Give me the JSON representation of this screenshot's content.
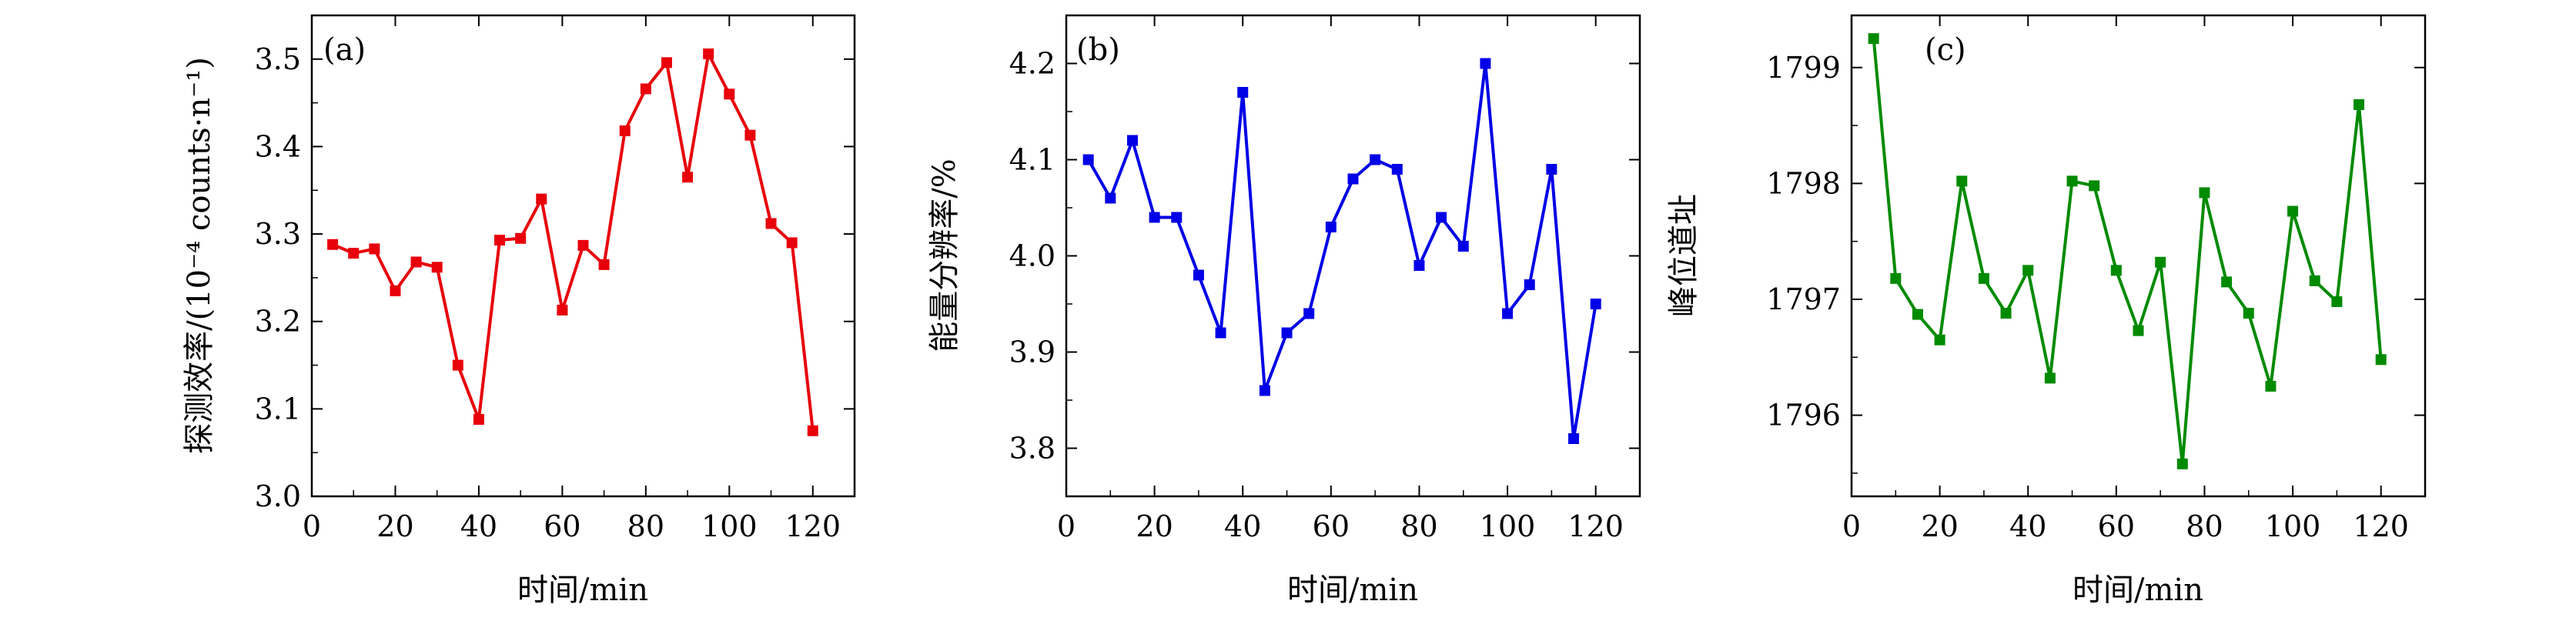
{
  "chart_data": [
    {
      "type": "line",
      "panel_label": "(a)",
      "xlabel": "时间/min",
      "ylabel": "探测效率/(10⁻⁴ counts·n⁻¹)",
      "xlim": [
        0,
        130
      ],
      "ylim": [
        3.0,
        3.55
      ],
      "xticks": [
        0,
        20,
        40,
        60,
        80,
        100,
        120
      ],
      "yticks": [
        3.0,
        3.1,
        3.2,
        3.3,
        3.4,
        3.5
      ],
      "ytick_labels": [
        "3.0",
        "3.1",
        "3.2",
        "3.3",
        "3.4",
        "3.5"
      ],
      "color": "#e8000b",
      "marker": "square",
      "x": [
        5,
        10,
        15,
        20,
        25,
        30,
        35,
        40,
        45,
        50,
        55,
        60,
        65,
        70,
        75,
        80,
        85,
        90,
        95,
        100,
        105,
        110,
        115,
        120
      ],
      "y": [
        3.288,
        3.278,
        3.283,
        3.235,
        3.268,
        3.262,
        3.15,
        3.088,
        3.293,
        3.295,
        3.34,
        3.213,
        3.287,
        3.265,
        3.418,
        3.466,
        3.496,
        3.365,
        3.506,
        3.46,
        3.413,
        3.312,
        3.29,
        3.075
      ]
    },
    {
      "type": "line",
      "panel_label": "(b)",
      "xlabel": "时间/min",
      "ylabel": "能量分辨率/%",
      "xlim": [
        0,
        130
      ],
      "ylim": [
        3.75,
        4.25
      ],
      "xticks": [
        0,
        20,
        40,
        60,
        80,
        100,
        120
      ],
      "yticks": [
        3.8,
        3.9,
        4.0,
        4.1,
        4.2
      ],
      "ytick_labels": [
        "3.8",
        "3.9",
        "4.0",
        "4.1",
        "4.2"
      ],
      "color": "#0000e6",
      "marker": "square",
      "x": [
        5,
        10,
        15,
        20,
        25,
        30,
        35,
        40,
        45,
        50,
        55,
        60,
        65,
        70,
        75,
        80,
        85,
        90,
        95,
        100,
        105,
        110,
        115,
        120
      ],
      "y": [
        4.1,
        4.06,
        4.12,
        4.04,
        4.04,
        3.98,
        3.92,
        4.17,
        3.86,
        3.92,
        3.94,
        4.03,
        4.08,
        4.1,
        4.09,
        3.99,
        4.04,
        4.01,
        4.2,
        3.94,
        3.97,
        4.09,
        3.81,
        3.95
      ]
    },
    {
      "type": "line",
      "panel_label": "(c)",
      "xlabel": "时间/min",
      "ylabel": "峰位道址",
      "xlim": [
        0,
        130
      ],
      "ylim": [
        1795.3,
        1799.45
      ],
      "xticks": [
        0,
        20,
        40,
        60,
        80,
        100,
        120
      ],
      "yticks": [
        1796,
        1797,
        1798,
        1799
      ],
      "ytick_labels": [
        "1796",
        "1797",
        "1798",
        "1799"
      ],
      "color": "#008a00",
      "marker": "square",
      "x": [
        5,
        10,
        15,
        20,
        25,
        30,
        35,
        40,
        45,
        50,
        55,
        60,
        65,
        70,
        75,
        80,
        85,
        90,
        95,
        100,
        105,
        110,
        115,
        120
      ],
      "y": [
        1799.25,
        1797.18,
        1796.87,
        1796.65,
        1798.02,
        1797.18,
        1796.88,
        1797.25,
        1796.32,
        1798.02,
        1797.98,
        1797.25,
        1796.73,
        1797.32,
        1795.58,
        1797.92,
        1797.15,
        1796.88,
        1796.25,
        1797.76,
        1797.16,
        1796.98,
        1798.68,
        1796.48
      ]
    }
  ]
}
